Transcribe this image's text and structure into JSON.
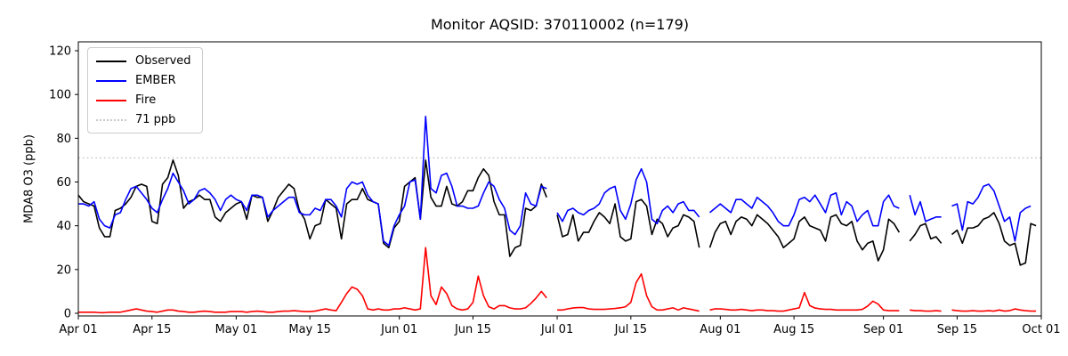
{
  "chart_data": {
    "type": "line",
    "title": "Monitor AQSID: 370110002 (n=179)",
    "xlabel": "",
    "ylabel": "MDA8 O3 (ppb)",
    "n_label": "n=179",
    "x_unit": "daily values from Apr 01 to Sep 30; axis extends to Oct 01",
    "x_start_date": "Apr 01",
    "x_end_date": "Oct 01",
    "x_ticks": {
      "labels": [
        "Apr 01",
        "Apr 15",
        "May 01",
        "May 15",
        "Jun 01",
        "Jun 15",
        "Jul 01",
        "Jul 15",
        "Aug 01",
        "Aug 15",
        "Sep 01",
        "Sep 15",
        "Oct 01"
      ],
      "day_index": [
        0,
        14,
        30,
        44,
        61,
        75,
        91,
        105,
        122,
        136,
        153,
        167,
        183
      ]
    },
    "y_ticks": [
      0,
      20,
      40,
      60,
      80,
      100,
      120
    ],
    "ylim": [
      -2,
      124
    ],
    "grid": false,
    "legend_position": "upper left",
    "threshold_line": {
      "value": 71,
      "label": "71 ppb",
      "color": "#c8c8c8",
      "style": "dotted"
    },
    "missing_dates": [
      "Jun 30",
      "Jul 29",
      "Sep 05",
      "Sep 13"
    ],
    "series": [
      {
        "name": "Observed",
        "color": "#000000",
        "values": [
          54,
          51,
          50,
          49,
          39,
          35,
          35,
          47,
          48,
          50,
          53,
          58,
          59,
          58,
          42,
          41,
          59,
          62,
          70,
          63,
          48,
          51,
          52,
          54,
          52,
          52,
          44,
          42,
          46,
          48,
          50,
          51,
          43,
          54,
          53,
          53,
          42,
          47,
          53,
          56,
          59,
          57,
          47,
          43,
          34,
          40,
          41,
          52,
          50,
          48,
          34,
          50,
          52,
          52,
          57,
          52,
          51,
          50,
          32,
          30,
          39,
          42,
          58,
          60,
          62,
          43,
          70,
          53,
          49,
          49,
          58,
          50,
          49,
          51,
          56,
          56,
          62,
          66,
          63,
          51,
          45,
          45,
          26,
          30,
          31,
          48,
          47,
          49,
          59,
          53,
          null,
          45,
          35,
          36,
          45,
          33,
          37,
          37,
          42,
          46,
          44,
          41,
          50,
          35,
          33,
          34,
          51,
          52,
          49,
          36,
          43,
          41,
          35,
          39,
          40,
          45,
          44,
          42,
          30,
          null,
          30,
          37,
          41,
          42,
          36,
          42,
          44,
          43,
          40,
          45,
          43,
          41,
          38,
          35,
          30,
          32,
          34,
          42,
          44,
          40,
          39,
          38,
          33,
          44,
          45,
          41,
          40,
          42,
          33,
          29,
          32,
          33,
          24,
          29,
          43,
          41,
          37,
          null,
          33,
          36,
          40,
          41,
          34,
          35,
          32,
          null,
          36,
          38,
          32,
          39,
          39,
          40,
          43,
          44,
          46,
          41,
          33,
          31,
          32,
          22,
          23,
          41,
          40
        ]
      },
      {
        "name": "EMBER",
        "color": "#0000ff",
        "values": [
          50,
          50,
          49,
          51,
          43,
          40,
          39,
          45,
          46,
          52,
          57,
          58,
          55,
          52,
          48,
          46,
          52,
          57,
          64,
          60,
          56,
          50,
          52,
          56,
          57,
          55,
          52,
          47,
          52,
          54,
          52,
          51,
          47,
          54,
          54,
          53,
          44,
          47,
          49,
          51,
          53,
          53,
          46,
          45,
          45,
          48,
          47,
          52,
          52,
          49,
          44,
          57,
          60,
          59,
          60,
          54,
          51,
          50,
          33,
          31,
          40,
          45,
          49,
          60,
          61,
          43,
          90,
          57,
          55,
          63,
          64,
          58,
          49,
          49,
          48,
          48,
          49,
          55,
          60,
          58,
          52,
          48,
          38,
          36,
          40,
          55,
          50,
          49,
          58,
          57,
          null,
          46,
          42,
          47,
          48,
          46,
          45,
          47,
          48,
          50,
          55,
          57,
          58,
          47,
          43,
          50,
          61,
          66,
          60,
          43,
          41,
          47,
          49,
          46,
          50,
          51,
          47,
          47,
          44,
          null,
          46,
          48,
          50,
          48,
          46,
          52,
          52,
          50,
          48,
          53,
          51,
          49,
          46,
          42,
          40,
          40,
          45,
          52,
          53,
          51,
          54,
          50,
          46,
          54,
          55,
          45,
          51,
          49,
          42,
          45,
          47,
          40,
          40,
          51,
          54,
          49,
          48,
          null,
          54,
          45,
          51,
          42,
          43,
          44,
          44,
          null,
          49,
          50,
          38,
          51,
          50,
          53,
          58,
          59,
          56,
          49,
          42,
          44,
          33,
          46,
          48,
          49,
          null
        ]
      },
      {
        "name": "Fire",
        "color": "#ff0000",
        "values": [
          0.5,
          0.5,
          0.5,
          0.5,
          0.3,
          0.3,
          0.5,
          0.5,
          0.5,
          1,
          1.5,
          2,
          1.5,
          1,
          0.8,
          0.5,
          1,
          1.5,
          1.5,
          1,
          0.8,
          0.5,
          0.5,
          0.8,
          1,
          0.8,
          0.5,
          0.5,
          0.5,
          0.8,
          0.8,
          0.8,
          0.5,
          0.8,
          1,
          0.8,
          0.5,
          0.5,
          0.8,
          1,
          1,
          1.2,
          1,
          0.8,
          0.8,
          1,
          1.5,
          2,
          1.5,
          1.2,
          5,
          9,
          12,
          11,
          8,
          2,
          1.5,
          2,
          1.5,
          1.5,
          2,
          2,
          2.5,
          2,
          1.5,
          2,
          30,
          8,
          4,
          12,
          9,
          3.5,
          2,
          1.5,
          2,
          5,
          17,
          8,
          3,
          2,
          3.5,
          3.5,
          2.5,
          2,
          2,
          2.5,
          4.5,
          7,
          10,
          7,
          null,
          1.5,
          1.5,
          2,
          2.4,
          2.6,
          2.6,
          2,
          1.8,
          1.8,
          1.8,
          2,
          2.2,
          2.5,
          3,
          5,
          14,
          18,
          8,
          3,
          1.5,
          1.5,
          2,
          2.5,
          1.5,
          2.5,
          2,
          1.5,
          1,
          null,
          1.5,
          2,
          2,
          1.8,
          1.5,
          1.5,
          1.8,
          1.5,
          1.2,
          1.5,
          1.5,
          1.2,
          1.2,
          1,
          1,
          1.5,
          2,
          2.5,
          9.5,
          3.5,
          2.4,
          2,
          1.8,
          1.8,
          1.5,
          1.5,
          1.5,
          1.5,
          1.5,
          1.8,
          3.3,
          5.5,
          4.2,
          1.5,
          1.2,
          1.2,
          1.2,
          null,
          1.5,
          1.2,
          1.2,
          1,
          1,
          1.2,
          1,
          null,
          1.5,
          1.2,
          1,
          1,
          1.2,
          1,
          1,
          1.2,
          1,
          1.5,
          1,
          1.2,
          2,
          1.5,
          1.2,
          1,
          1
        ]
      }
    ]
  }
}
